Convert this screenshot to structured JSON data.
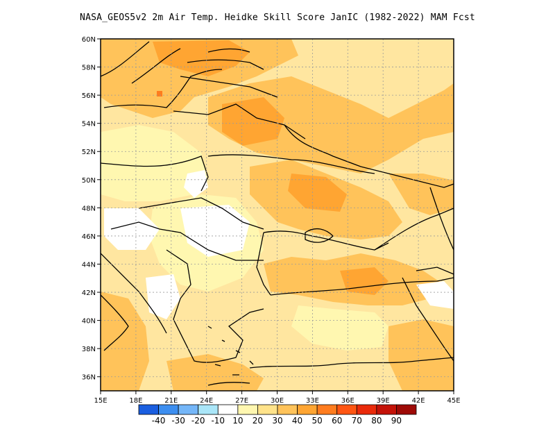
{
  "title": "NASA_GEOS5v2  2m Air Temp. Heidke Skill Score JanIC (1982-2022) MAM Fcst",
  "map": {
    "lon_range": [
      15,
      45
    ],
    "lat_range": [
      35,
      60
    ],
    "lon_ticks": [
      "15E",
      "18E",
      "21E",
      "24E",
      "27E",
      "30E",
      "33E",
      "36E",
      "39E",
      "42E",
      "45E"
    ],
    "lat_ticks": [
      "36N",
      "38N",
      "40N",
      "42N",
      "44N",
      "46N",
      "48N",
      "50N",
      "52N",
      "54N",
      "56N",
      "58N",
      "60N"
    ],
    "gridlines": true
  },
  "colorbar": {
    "colors": [
      "#1a5ee0",
      "#3c8ef0",
      "#74b6f8",
      "#aae6f8",
      "#ffffff",
      "#fff7b0",
      "#ffe38a",
      "#ffc35a",
      "#ffa532",
      "#ff7c1e",
      "#ff5512",
      "#ea2a0a",
      "#c41208",
      "#9e0a06"
    ],
    "labels": [
      "-40",
      "-30",
      "-20",
      "-10",
      "10",
      "20",
      "30",
      "40",
      "50",
      "60",
      "70",
      "80",
      "90"
    ]
  },
  "regions": [
    {
      "name": "background",
      "color": "#ffe6a0"
    },
    {
      "name": "scandinavia-baltic",
      "color": "#ffc35a"
    },
    {
      "name": "belarus-russia",
      "color": "#ffc35a"
    },
    {
      "name": "ukraine",
      "color": "#ffc35a"
    },
    {
      "name": "turkey-north",
      "color": "#ffc35a"
    },
    {
      "name": "hungary-serbia",
      "color": "#fff7b0"
    },
    {
      "name": "white-central-europe",
      "color": "#ffffff"
    },
    {
      "name": "white-balkans",
      "color": "#ffffff"
    },
    {
      "name": "latvia-hotspot",
      "color": "#ffa532"
    },
    {
      "name": "ukraine-hotspot",
      "color": "#ffa532"
    },
    {
      "name": "aegean-hotspot",
      "color": "#ffa532"
    },
    {
      "name": "small-red-spot",
      "color": "#ff7c1e"
    }
  ]
}
